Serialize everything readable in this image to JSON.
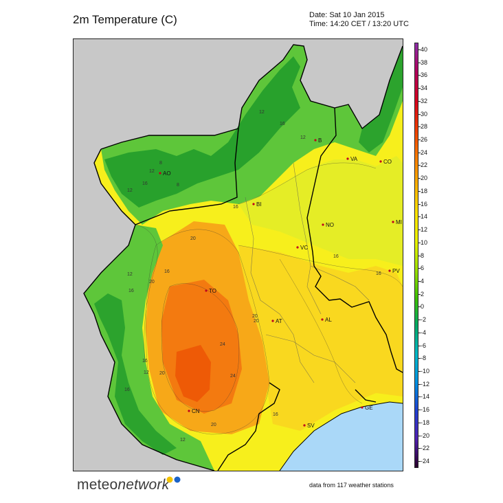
{
  "header": {
    "title": "2m Temperature (C)",
    "date_line": "Date: Sat 10 Jan 2015",
    "time_line": "Time: 14:20 CET / 13:20 UTC"
  },
  "footer": {
    "logo_prefix": "meteo",
    "logo_suffix": "network",
    "stations_text": "data from 117 weather stations"
  },
  "legend": {
    "ticks": [
      "40",
      "38",
      "36",
      "34",
      "32",
      "30",
      "28",
      "26",
      "24",
      "22",
      "20",
      "18",
      "16",
      "14",
      "12",
      "10",
      "8",
      "6",
      "4",
      "2",
      "0",
      "-2",
      "-4",
      "-6",
      "-8",
      "-10",
      "-12",
      "-14",
      "-16",
      "-18",
      "-20",
      "-22",
      "-24"
    ],
    "colors": [
      "#8b2fa8",
      "#b0005c",
      "#d40020",
      "#ee3a00",
      "#f87a00",
      "#fbb000",
      "#fde200",
      "#e9f200",
      "#9fe000",
      "#3fc000",
      "#00a868",
      "#00b8c8",
      "#0090e0",
      "#2040d0",
      "#5020b0",
      "#2a002a"
    ]
  },
  "cities": [
    {
      "code": "AO"
    },
    {
      "code": "B"
    },
    {
      "code": "VA"
    },
    {
      "code": "CO"
    },
    {
      "code": "BI"
    },
    {
      "code": "NO"
    },
    {
      "code": "MI"
    },
    {
      "code": "VC"
    },
    {
      "code": "PV"
    },
    {
      "code": "TO"
    },
    {
      "code": "AT"
    },
    {
      "code": "AL"
    },
    {
      "code": "GE"
    },
    {
      "code": "CN"
    },
    {
      "code": "SV"
    }
  ],
  "contour_labels": [
    "12",
    "16",
    "12",
    "8",
    "12",
    "16",
    "12",
    "8",
    "16",
    "20",
    "16",
    "12",
    "16",
    "20",
    "20",
    "24",
    "24",
    "20",
    "16",
    "12",
    "16",
    "20",
    "16",
    "16",
    "12",
    "20",
    "16"
  ],
  "colors": {
    "outside": "#c8c8c8",
    "sea": "#aad8f8",
    "mountain_dark": "#1f9a2a",
    "mountain_mid": "#5ec63a",
    "hill_yellow": "#dfec2a",
    "plain_yellow": "#f7ef1c",
    "plain_gold": "#f9d420",
    "warm_orange": "#f7a818",
    "hot_orange": "#f37a10",
    "hottest": "#ee5a06"
  }
}
